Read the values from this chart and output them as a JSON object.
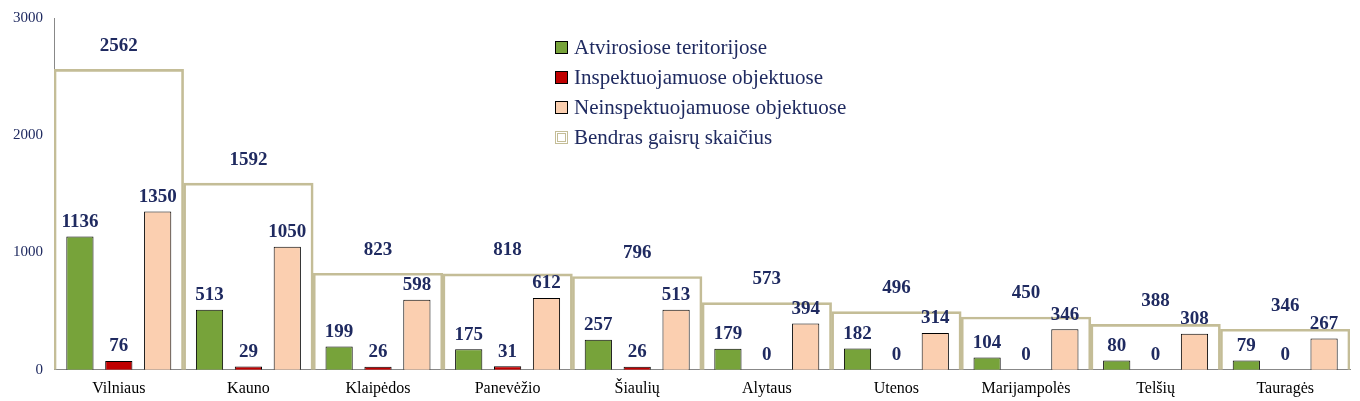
{
  "chart_data": {
    "type": "bar",
    "categories": [
      "Vilniaus",
      "Kauno",
      "Klaipėdos",
      "Panevėžio",
      "Šiaulių",
      "Alytaus",
      "Utenos",
      "Marijampolės",
      "Telšių",
      "Tauragės"
    ],
    "series": [
      {
        "name": "Atvirosiose teritorijose",
        "color": "#77a33a",
        "values": [
          1136,
          513,
          199,
          175,
          257,
          179,
          182,
          104,
          80,
          79
        ]
      },
      {
        "name": "Inspektuojamuose objektuose",
        "color": "#c00000",
        "values": [
          76,
          29,
          26,
          31,
          26,
          0,
          0,
          0,
          0,
          0
        ]
      },
      {
        "name": "Neinspektuojamuose objektuose",
        "color": "#fbcfb0",
        "values": [
          1350,
          1050,
          598,
          612,
          513,
          394,
          314,
          346,
          308,
          267
        ]
      },
      {
        "name": "Bendras gaisrų skaičius",
        "color": "#c4bd97",
        "values": [
          2562,
          1592,
          823,
          818,
          796,
          573,
          496,
          450,
          388,
          346
        ]
      }
    ],
    "ylim": [
      0,
      3000
    ],
    "yticks": [
      0,
      1000,
      2000,
      3000
    ],
    "grid": false,
    "legend": "top right",
    "data_labels": true
  }
}
